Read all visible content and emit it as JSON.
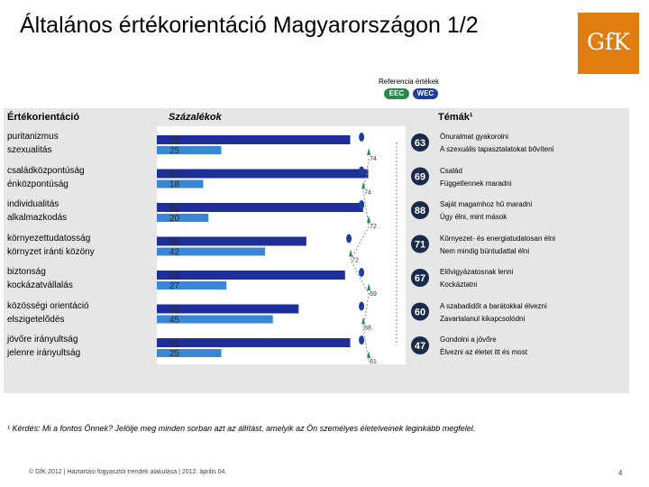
{
  "title": "Általános értékorientáció Magyarországon 1/2",
  "logo_text": "GfK",
  "reference": {
    "label": "Referencia értékek",
    "items": [
      {
        "name": "EEC",
        "color": "#2a8a4a"
      },
      {
        "name": "WEC",
        "color": "#1f3d9a"
      }
    ]
  },
  "headers": {
    "orientation": "Értékorientáció",
    "percent": "Százalékok",
    "themes": "Témák¹"
  },
  "colors": {
    "bar_dark": "#1f2f9a",
    "bar_light": "#3a86d6",
    "badge": "#1a2a4a",
    "wec_marker": "#1f3d9a",
    "eec_marker": "#2a8a4a",
    "dotted_line": "#7a8a9a"
  },
  "chart_data": {
    "type": "bar",
    "note": "Paired horizontal bars per value orientation (percentages summing to 100), with badge values and reference markers.",
    "rows": [
      {
        "labels": [
          "puritanizmus",
          "szexualitás"
        ],
        "values": [
          75,
          25
        ],
        "badge": 63,
        "marker_label": "74",
        "themes": [
          "Önuralmat gyakorolni",
          "A szexuális tapasztalatokat bővíteni"
        ]
      },
      {
        "labels": [
          "családközpontúság",
          "énközpontúság"
        ],
        "values": [
          82,
          18
        ],
        "badge": 69,
        "marker_label": "74",
        "themes": [
          "Család",
          "Függetlennek maradni"
        ]
      },
      {
        "labels": [
          "individualitás",
          "alkalmazkodás"
        ],
        "values": [
          80,
          20
        ],
        "badge": 88,
        "marker_label": "72",
        "themes": [
          "Saját magamhoz hű maradni",
          "Úgy élni, mint mások"
        ]
      },
      {
        "labels": [
          "környezettudatosság",
          "környzet iránti közöny"
        ],
        "values": [
          58,
          42
        ],
        "badge": 71,
        "marker_label": "72",
        "themes": [
          "Környezet- és energiatudatosan élni",
          "Nem mindig büntudattal élni"
        ]
      },
      {
        "labels": [
          "biztonság",
          "kockázatvállalás"
        ],
        "values": [
          73,
          27
        ],
        "badge": 67,
        "marker_label": "69",
        "themes": [
          "Elővigyázatosnak lenni",
          "Kockáztatni"
        ]
      },
      {
        "labels": [
          "közösségi orientáció",
          "elszigetelődés"
        ],
        "values": [
          55,
          45
        ],
        "badge": 60,
        "marker_label": "68",
        "themes": [
          "A szabadidőt a barátokkal élvezni",
          "Zavartalanul kikapcsolódni"
        ]
      },
      {
        "labels": [
          "jövőre irányultság",
          "jelenre irányultság"
        ],
        "values": [
          75,
          25
        ],
        "badge": 47,
        "marker_label": "61",
        "themes": [
          "Gondolni a jövőre",
          "Élvezni az életet itt és most"
        ]
      }
    ]
  },
  "footnote": "¹ Kérdés: Mi a fontos Önnek? Jelölje meg minden sorban azt az állítást, amelyik az Ön személyes életelveinek leginkább megfelel.",
  "footer": "© GfK 2012 | Háztartási fogyasztói trendek alakulása | 2012. április 04.",
  "page_number": "4"
}
